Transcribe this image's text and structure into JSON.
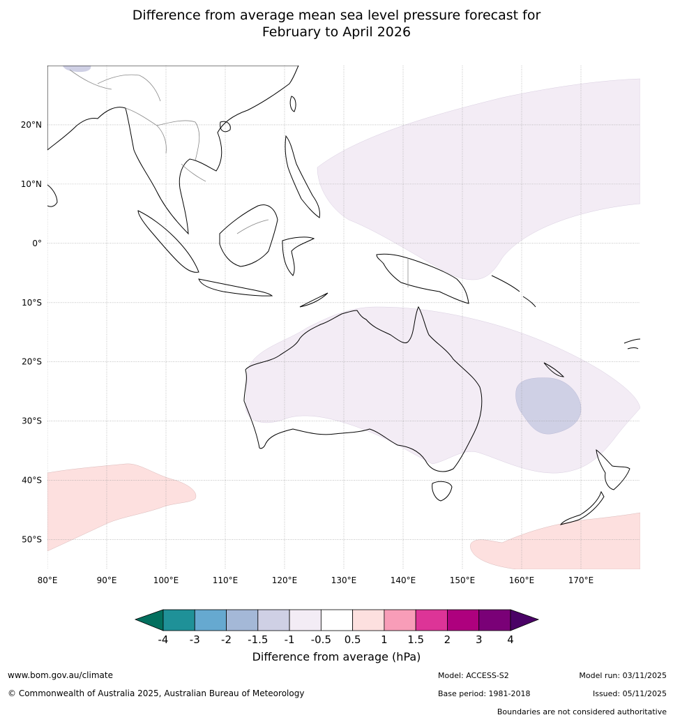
{
  "title": {
    "line1": "Difference from average mean sea level pressure forecast for",
    "line2": "February to April 2026"
  },
  "map": {
    "lon_range": [
      80,
      180
    ],
    "lat_range": [
      -55,
      30
    ],
    "lat_ticks": [
      {
        "lat": 20,
        "label": "20°N"
      },
      {
        "lat": 10,
        "label": "10°N"
      },
      {
        "lat": 0,
        "label": "0°"
      },
      {
        "lat": -10,
        "label": "10°S"
      },
      {
        "lat": -20,
        "label": "20°S"
      },
      {
        "lat": -30,
        "label": "30°S"
      },
      {
        "lat": -40,
        "label": "40°S"
      },
      {
        "lat": -50,
        "label": "50°S"
      }
    ],
    "lon_ticks": [
      {
        "lon": 80,
        "label": "80°E"
      },
      {
        "lon": 90,
        "label": "90°E"
      },
      {
        "lon": 100,
        "label": "100°E"
      },
      {
        "lon": 110,
        "label": "110°E"
      },
      {
        "lon": 120,
        "label": "120°E"
      },
      {
        "lon": 130,
        "label": "130°E"
      },
      {
        "lon": 140,
        "label": "140°E"
      },
      {
        "lon": 150,
        "label": "150°E"
      },
      {
        "lon": 160,
        "label": "160°E"
      },
      {
        "lon": 170,
        "label": "170°E"
      }
    ],
    "anomaly_regions": [
      {
        "name": "north-pacific-negative",
        "category": "-0.5 to -1",
        "color": "#f3ecf5"
      },
      {
        "name": "australia-negative",
        "category": "-0.5 to -1",
        "color": "#f3ecf5"
      },
      {
        "name": "tasman-sea-negative",
        "category": "-1 to -1.5",
        "color": "#cfd0e5"
      },
      {
        "name": "himalaya-negative",
        "category": "-1 to -1.5",
        "color": "#cfd0e5"
      },
      {
        "name": "southern-ocean-west-positive",
        "category": "0.5 to 1",
        "color": "#fde0df"
      },
      {
        "name": "southern-ocean-east-positive",
        "category": "0.5 to 1",
        "color": "#fde0df"
      }
    ]
  },
  "colorbar": {
    "ticks": [
      "-4",
      "-3",
      "-2",
      "-1.5",
      "-1",
      "-0.5",
      "0.5",
      "1",
      "1.5",
      "2",
      "3",
      "4"
    ],
    "low_extend_color": "#036f5e",
    "high_extend_color": "#4a0266",
    "segments": [
      "#1f9198",
      "#66a9d0",
      "#a4b8d7",
      "#cfd0e5",
      "#f3ecf5",
      "#ffffff",
      "#fde0df",
      "#f89db8",
      "#dd3497",
      "#ae017e",
      "#7a0177"
    ],
    "label": "Difference from average (hPa)"
  },
  "footer": {
    "url": "www.bom.gov.au/climate",
    "copyright": "© Commonwealth of Australia 2025, Australian Bureau of Meteorology",
    "model": "Model: ACCESS-S2",
    "base_period": "Base period: 1981-2018",
    "model_run": "Model run: 03/11/2025",
    "issued": "Issued: 05/11/2025",
    "disclaimer": "Boundaries are not considered authoritative"
  }
}
